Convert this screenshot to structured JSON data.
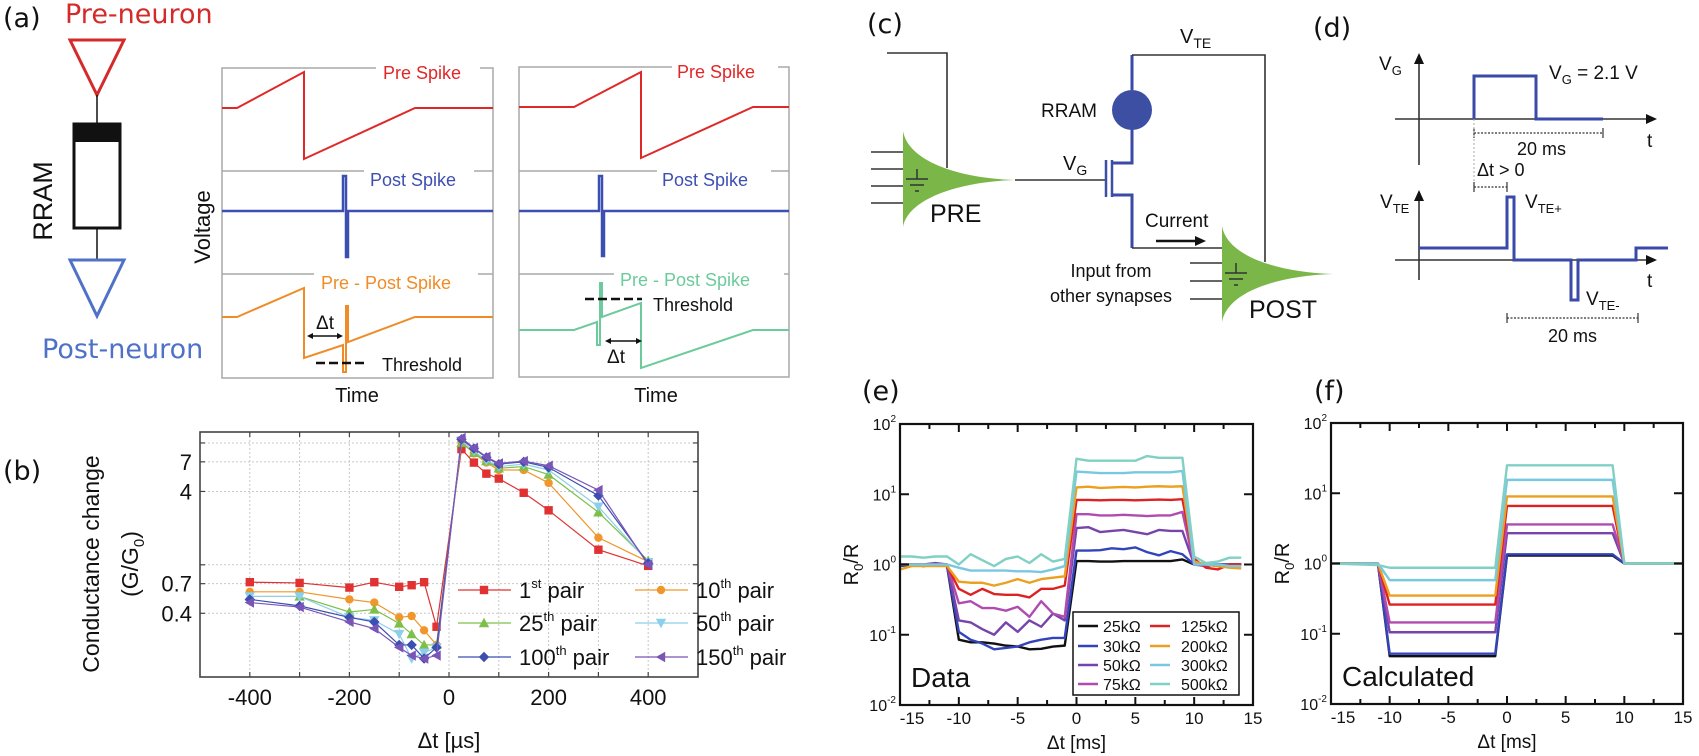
{
  "panel_labels": {
    "a": "(a)",
    "b": "(b)",
    "c": "(c)",
    "d": "(d)",
    "e": "(e)",
    "f": "(f)"
  },
  "panel_a": {
    "pre_neuron": "Pre-neuron",
    "post_neuron": "Post-neuron",
    "rram": "RRAM",
    "voltage": "Voltage",
    "colors": {
      "pre": "#e02828",
      "post": "#3d4fb0",
      "ltp": "#f08c28",
      "ltd": "#6ccb9c",
      "pre_neuron_text": "#d42a2a",
      "post_neuron_text": "#4f72c8"
    },
    "waveforms": [
      {
        "pre": "Pre Spike",
        "post": "Post Spike",
        "diff": "Pre - Post Spike",
        "delta_t": "Δt",
        "threshold": "Threshold",
        "time": "Time"
      },
      {
        "pre": "Pre Spike",
        "post": "Post Spike",
        "diff": "Pre - Post Spike",
        "delta_t": "Δt",
        "threshold": "Threshold",
        "time": "Time"
      }
    ]
  },
  "panel_c": {
    "vte": {
      "base": "V",
      "sub": "TE"
    },
    "vg": {
      "base": "V",
      "sub": "G"
    },
    "rram": "RRAM",
    "pre": "PRE",
    "post": "POST",
    "current": "Current",
    "input_line1": "Input from",
    "input_line2": "other synapses",
    "colors": {
      "neuron": "#7ab648",
      "device": "#3d4fa3"
    }
  },
  "panel_d": {
    "vg_axis": {
      "base": "V",
      "sub": "G"
    },
    "vg_value": {
      "base": "V",
      "sub": "G",
      "rest": " = 2.1 V"
    },
    "t_top": "t",
    "duration_top": "20 ms",
    "delta_t": "Δt > 0",
    "vte_axis": {
      "base": "V",
      "sub": "TE"
    },
    "vte_plus": {
      "base": "V",
      "sub": "TE+"
    },
    "vte_minus": {
      "base": "V",
      "sub": "TE-"
    },
    "t_bottom": "t",
    "duration_bottom": "20 ms"
  },
  "chart_data": [
    {
      "id": "b",
      "type": "line",
      "y_scale": "log",
      "xlabel": "Δt [µs]",
      "ylabel": "Conductance change",
      "ylabel2": {
        "base": "(G/G",
        "sub": "0",
        "rest": ")"
      },
      "xlim": [
        -500,
        500
      ],
      "ylim": [
        0.12,
        12.3
      ],
      "xticks": [
        -400,
        -200,
        0,
        200,
        400
      ],
      "xtick_labels": [
        "-400",
        "-200",
        "0",
        "200",
        "400"
      ],
      "yticks": [
        0.4,
        0.7,
        4,
        7
      ],
      "ytick_labels": [
        "0.4",
        "0.7",
        "4",
        "7"
      ],
      "ygrid": [
        0.4,
        0.7,
        1,
        4,
        7,
        10
      ],
      "grid": true,
      "legend": "bottom-right",
      "x": [
        -400,
        -300,
        -200,
        -150,
        -100,
        -75,
        -50,
        -25,
        25,
        50,
        75,
        100,
        150,
        200,
        300,
        400
      ],
      "series": [
        {
          "name": "1st pair",
          "label": {
            "num": "1",
            "sup": "st",
            "rest": " pair"
          },
          "color": "#e03232",
          "marker": "square",
          "values": [
            0.72,
            0.71,
            0.65,
            0.72,
            0.66,
            0.68,
            0.72,
            0.31,
            8.9,
            6.9,
            5.6,
            5.1,
            3.9,
            2.8,
            1.33,
            0.98
          ]
        },
        {
          "name": "10th pair",
          "label": {
            "num": "10",
            "sup": "th",
            "rest": " pair"
          },
          "color": "#f0962a",
          "marker": "circle",
          "values": [
            0.6,
            0.6,
            0.52,
            0.49,
            0.37,
            0.38,
            0.29,
            0.22,
            10.2,
            8.2,
            6.9,
            6.0,
            6.0,
            4.7,
            1.67,
            1.06
          ]
        },
        {
          "name": "25th pair",
          "label": {
            "num": "25",
            "sup": "th",
            "rest": " pair"
          },
          "color": "#7cc04a",
          "marker": "triangle-up",
          "values": [
            0.55,
            0.55,
            0.41,
            0.43,
            0.33,
            0.27,
            0.22,
            0.22,
            10.0,
            8.3,
            7.1,
            6.2,
            6.4,
            5.5,
            2.7,
            1.08
          ]
        },
        {
          "name": "50th pair",
          "label": {
            "num": "50",
            "sup": "th",
            "rest": " pair"
          },
          "color": "#8ccfea",
          "marker": "triangle-down",
          "values": [
            0.55,
            0.55,
            0.37,
            0.35,
            0.27,
            0.17,
            0.19,
            0.21,
            10.4,
            8.6,
            7.2,
            6.4,
            6.7,
            6.0,
            3.0,
            1.05
          ]
        },
        {
          "name": "100th pair",
          "label": {
            "num": "100",
            "sup": "th",
            "rest": " pair"
          },
          "color": "#3a4fb0",
          "marker": "diamond",
          "values": [
            0.52,
            0.46,
            0.37,
            0.34,
            0.22,
            0.22,
            0.17,
            0.21,
            10.7,
            9.0,
            7.6,
            6.7,
            7.0,
            6.3,
            3.7,
            1.03
          ]
        },
        {
          "name": "150th pair",
          "label": {
            "num": "150",
            "sup": "th",
            "rest": " pair"
          },
          "color": "#7a55b8",
          "marker": "triangle-left",
          "values": [
            0.49,
            0.45,
            0.34,
            0.3,
            0.21,
            0.18,
            0.17,
            0.18,
            11.0,
            9.1,
            7.7,
            6.8,
            7.1,
            6.5,
            4.1,
            1.0
          ]
        }
      ]
    },
    {
      "id": "e",
      "type": "line",
      "y_scale": "log",
      "annotation": "Data",
      "xlabel": "Δt [ms]",
      "ylabel": {
        "base": "R",
        "sub": "0",
        "rest": "/R"
      },
      "xlim": [
        -15,
        15
      ],
      "ylim": [
        0.01,
        100
      ],
      "xticks": [
        -15,
        -10,
        -5,
        0,
        5,
        10,
        15
      ],
      "xtick_labels": [
        "-15",
        "-10",
        "-5",
        "0",
        "5",
        "10",
        "15"
      ],
      "yticks": [
        0.01,
        0.1,
        1,
        10,
        100
      ],
      "ytick_labels": [
        {
          "base": "10",
          "sup": "-2"
        },
        {
          "base": "10",
          "sup": "-1"
        },
        {
          "base": "10",
          "sup": "0"
        },
        {
          "base": "10",
          "sup": "1"
        },
        {
          "base": "10",
          "sup": "2"
        }
      ],
      "grid": false,
      "legend": "bottom-right",
      "x": [
        -15,
        -14,
        -13,
        -12,
        -11,
        -10,
        -9,
        -8,
        -7,
        -6,
        -5,
        -4,
        -3,
        -2,
        -1,
        0,
        1,
        2,
        3,
        4,
        5,
        6,
        7,
        8,
        9,
        10,
        11,
        12,
        13,
        14
      ],
      "series": [
        {
          "name": "25kΩ",
          "color": "#111111",
          "values": [
            0.95,
            1.0,
            0.95,
            1.0,
            0.95,
            0.085,
            0.078,
            0.078,
            0.075,
            0.07,
            0.068,
            0.062,
            0.063,
            0.068,
            0.07,
            1.12,
            1.12,
            1.1,
            1.1,
            1.12,
            1.12,
            1.12,
            1.12,
            1.12,
            1.18,
            1.0,
            1.0,
            1.0,
            1.0,
            1.0
          ]
        },
        {
          "name": "30kΩ",
          "color": "#3344bb",
          "values": [
            0.95,
            1.0,
            0.95,
            1.0,
            0.95,
            0.11,
            0.085,
            0.075,
            0.062,
            0.065,
            0.068,
            0.078,
            0.085,
            0.09,
            0.09,
            1.58,
            1.58,
            1.6,
            1.7,
            1.65,
            1.75,
            1.5,
            1.35,
            1.55,
            1.4,
            1.0,
            1.0,
            0.95,
            1.0,
            1.0
          ]
        },
        {
          "name": "50kΩ",
          "color": "#7744aa",
          "values": [
            1.0,
            1.0,
            1.0,
            1.05,
            1.0,
            0.16,
            0.15,
            0.12,
            0.1,
            0.15,
            0.11,
            0.16,
            0.13,
            0.2,
            0.16,
            3.3,
            3.4,
            2.9,
            3.0,
            3.1,
            2.9,
            2.7,
            3.1,
            3.0,
            3.0,
            1.0,
            0.95,
            1.0,
            1.0,
            1.0
          ]
        },
        {
          "name": "75kΩ",
          "color": "#b04cb0",
          "values": [
            1.0,
            1.0,
            1.0,
            1.0,
            1.0,
            0.28,
            0.3,
            0.24,
            0.24,
            0.22,
            0.25,
            0.18,
            0.3,
            0.2,
            0.18,
            5.2,
            5.2,
            5.0,
            5.0,
            5.1,
            5.0,
            4.9,
            5.0,
            5.0,
            5.6,
            1.0,
            1.0,
            1.0,
            0.95,
            1.0
          ]
        },
        {
          "name": "125kΩ",
          "color": "#dd2222",
          "values": [
            1.0,
            1.0,
            1.0,
            1.0,
            0.95,
            0.45,
            0.37,
            0.45,
            0.38,
            0.37,
            0.37,
            0.34,
            0.45,
            0.45,
            0.5,
            8.3,
            8.3,
            8.2,
            8.3,
            8.3,
            8.2,
            8.3,
            8.4,
            8.3,
            8.5,
            1.2,
            0.9,
            0.85,
            1.0,
            1.0
          ]
        },
        {
          "name": "200kΩ",
          "color": "#eba020",
          "values": [
            0.85,
            0.95,
            0.95,
            0.95,
            0.95,
            0.57,
            0.55,
            0.55,
            0.5,
            0.55,
            0.62,
            0.55,
            0.62,
            0.65,
            0.68,
            12.5,
            12.8,
            12.3,
            12.5,
            12.7,
            12.5,
            12.8,
            13,
            12.8,
            13,
            1.1,
            1.0,
            0.95,
            0.9,
            0.88
          ]
        },
        {
          "name": "300kΩ",
          "color": "#78c8e0",
          "values": [
            1.0,
            1.0,
            1.0,
            1.0,
            1.0,
            0.9,
            0.82,
            0.82,
            0.82,
            0.82,
            0.8,
            0.8,
            0.78,
            0.85,
            0.95,
            21,
            20.5,
            20,
            20,
            20,
            20.5,
            20.5,
            20.5,
            20.5,
            21.5,
            1.0,
            1.0,
            1.0,
            0.95,
            0.95
          ]
        },
        {
          "name": "500kΩ",
          "color": "#80d0c4",
          "values": [
            1.3,
            1.3,
            1.25,
            1.3,
            1.3,
            1.0,
            1.4,
            1.15,
            0.95,
            1.2,
            1.3,
            1.05,
            1.4,
            1.1,
            1.2,
            32,
            30,
            30,
            30,
            30,
            30,
            35,
            33,
            33,
            33,
            1.3,
            1.05,
            1.1,
            1.25,
            1.25
          ]
        }
      ]
    },
    {
      "id": "f",
      "type": "line",
      "y_scale": "log",
      "annotation": "Calculated",
      "xlabel": "Δt [ms]",
      "ylabel": {
        "base": "R",
        "sub": "0",
        "rest": "/R"
      },
      "xlim": [
        -15,
        15
      ],
      "ylim": [
        0.01,
        100
      ],
      "xticks": [
        -15,
        -10,
        -5,
        0,
        5,
        10,
        15
      ],
      "xtick_labels": [
        "-15",
        "-10",
        "-5",
        "0",
        "5",
        "10",
        "15"
      ],
      "yticks": [
        0.01,
        0.1,
        1,
        10,
        100
      ],
      "ytick_labels": [
        {
          "base": "10",
          "sup": "-2"
        },
        {
          "base": "10",
          "sup": "-1"
        },
        {
          "base": "10",
          "sup": "0"
        },
        {
          "base": "10",
          "sup": "1"
        },
        {
          "base": "10",
          "sup": "2"
        }
      ],
      "grid": false,
      "x": [
        -15,
        -11,
        -10,
        -1,
        0,
        9,
        10,
        15
      ],
      "series": [
        {
          "name": "25kΩ",
          "color": "#111111",
          "values": [
            1,
            1,
            0.048,
            0.048,
            1.3,
            1.3,
            1,
            1
          ]
        },
        {
          "name": "30kΩ",
          "color": "#3344bb",
          "values": [
            1,
            1,
            0.052,
            0.052,
            1.35,
            1.35,
            1,
            1
          ]
        },
        {
          "name": "50kΩ",
          "color": "#7744aa",
          "values": [
            1,
            1,
            0.105,
            0.105,
            2.7,
            2.7,
            1,
            1
          ]
        },
        {
          "name": "75kΩ",
          "color": "#b04cb0",
          "values": [
            1,
            1,
            0.145,
            0.145,
            3.6,
            3.6,
            1,
            1
          ]
        },
        {
          "name": "125kΩ",
          "color": "#dd2222",
          "values": [
            1,
            1,
            0.26,
            0.26,
            6.6,
            6.6,
            1,
            1
          ]
        },
        {
          "name": "200kΩ",
          "color": "#eba020",
          "values": [
            1,
            1,
            0.35,
            0.35,
            9.0,
            9.0,
            1,
            1
          ]
        },
        {
          "name": "300kΩ",
          "color": "#78c8e0",
          "values": [
            1,
            1,
            0.58,
            0.58,
            15.5,
            15.5,
            1,
            1
          ]
        },
        {
          "name": "500kΩ",
          "color": "#80d0c4",
          "values": [
            1,
            0.95,
            0.87,
            0.87,
            25,
            25,
            1,
            1
          ]
        }
      ]
    }
  ]
}
